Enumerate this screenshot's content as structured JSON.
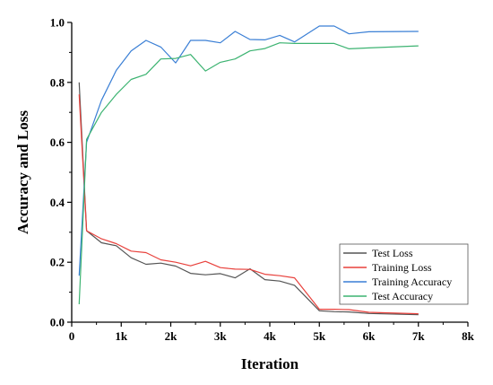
{
  "chart_data": {
    "type": "line",
    "title": "",
    "xlabel": "Iteration",
    "ylabel": "Accuracy and Loss",
    "xlim": [
      0,
      8000
    ],
    "ylim": [
      0,
      1.0
    ],
    "xticks": [
      0,
      1000,
      2000,
      3000,
      4000,
      5000,
      6000,
      7000,
      8000
    ],
    "xtick_labels": [
      "0",
      "1k",
      "2k",
      "3k",
      "4k",
      "5k",
      "6k",
      "7k",
      "8k"
    ],
    "yticks": [
      0,
      0.2,
      0.4,
      0.6,
      0.8,
      1.0
    ],
    "ytick_labels": [
      "0.0",
      "0.2",
      "0.4",
      "0.6",
      "0.8",
      "1.0"
    ],
    "grid": false,
    "legend_position": "bottom-right",
    "series": [
      {
        "name": "Test Loss",
        "color": "#555555",
        "x": [
          150,
          300,
          600,
          900,
          1200,
          1500,
          1800,
          2100,
          2400,
          2700,
          3000,
          3300,
          3600,
          3900,
          4200,
          4500,
          5000,
          5300,
          5600,
          6000,
          7000
        ],
        "y": [
          0.8,
          0.305,
          0.265,
          0.255,
          0.215,
          0.193,
          0.197,
          0.187,
          0.163,
          0.158,
          0.162,
          0.148,
          0.178,
          0.142,
          0.137,
          0.123,
          0.038,
          0.035,
          0.034,
          0.029,
          0.025
        ]
      },
      {
        "name": "Training Loss",
        "color": "#e8413c",
        "x": [
          150,
          300,
          600,
          900,
          1200,
          1500,
          1800,
          2100,
          2400,
          2700,
          3000,
          3300,
          3600,
          3900,
          4200,
          4500,
          5000,
          5300,
          5600,
          6000,
          7000
        ],
        "y": [
          0.76,
          0.305,
          0.278,
          0.262,
          0.237,
          0.232,
          0.208,
          0.2,
          0.188,
          0.203,
          0.182,
          0.177,
          0.176,
          0.16,
          0.155,
          0.148,
          0.043,
          0.043,
          0.042,
          0.033,
          0.028
        ]
      },
      {
        "name": "Training Accuracy",
        "color": "#3a7fd5",
        "x": [
          150,
          300,
          600,
          900,
          1200,
          1500,
          1800,
          2100,
          2400,
          2700,
          3000,
          3300,
          3600,
          3900,
          4200,
          4500,
          5000,
          5300,
          5600,
          6000,
          7000
        ],
        "y": [
          0.155,
          0.6,
          0.74,
          0.84,
          0.905,
          0.94,
          0.918,
          0.865,
          0.94,
          0.94,
          0.932,
          0.97,
          0.943,
          0.942,
          0.957,
          0.935,
          0.988,
          0.988,
          0.962,
          0.969,
          0.97
        ]
      },
      {
        "name": "Test Accuracy",
        "color": "#3cb371",
        "x": [
          150,
          300,
          600,
          900,
          1200,
          1500,
          1800,
          2100,
          2400,
          2700,
          3000,
          3300,
          3600,
          3900,
          4200,
          4500,
          5000,
          5300,
          5600,
          6000,
          7000
        ],
        "y": [
          0.06,
          0.61,
          0.7,
          0.76,
          0.81,
          0.827,
          0.878,
          0.88,
          0.893,
          0.838,
          0.867,
          0.878,
          0.905,
          0.913,
          0.932,
          0.93,
          0.93,
          0.93,
          0.912,
          0.915,
          0.922
        ]
      }
    ]
  }
}
